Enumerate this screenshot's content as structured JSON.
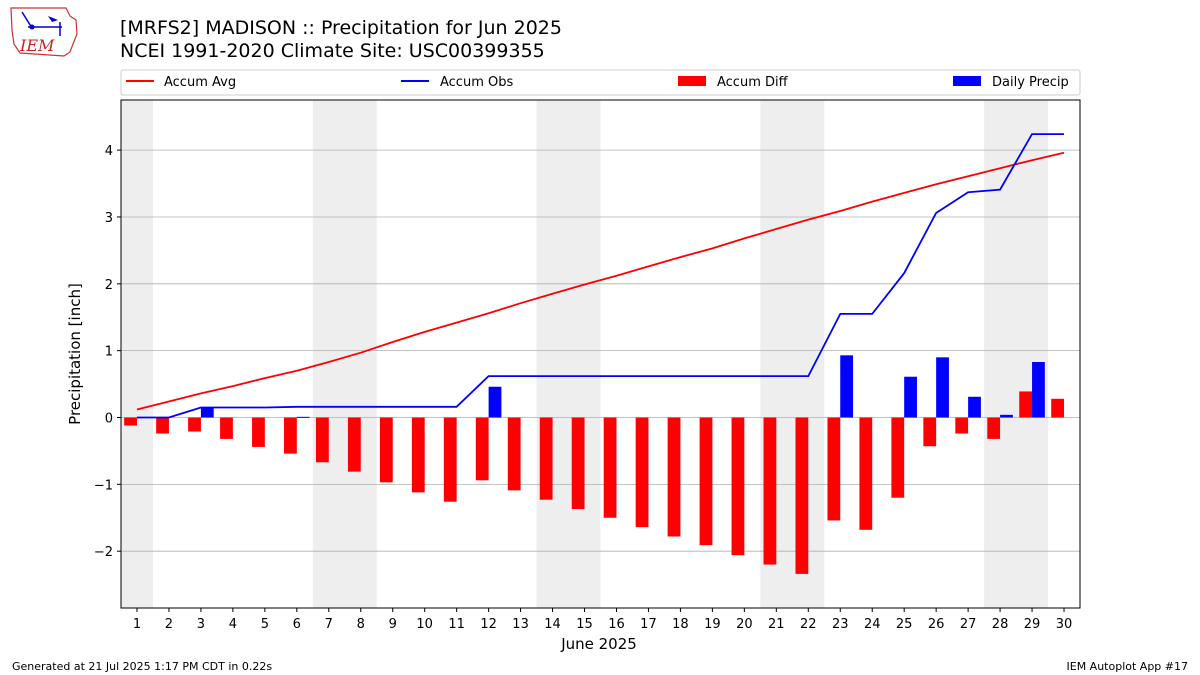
{
  "header": {
    "title_line1": "[MRFS2] MADISON :: Precipitation for Jun 2025",
    "title_line2": "NCEI 1991-2020 Climate Site: USC00399355",
    "logo_text": "IEM"
  },
  "footer": {
    "generated": "Generated at 21 Jul 2025 1:17 PM CDT in 0.22s",
    "app": "IEM Autoplot App #17"
  },
  "chart_data": {
    "type": "bar",
    "xlabel": "June 2025",
    "ylabel": "Precipitation [inch]",
    "xlim": [
      0.5,
      30.5
    ],
    "ylim": [
      -2.85,
      4.75
    ],
    "yticks": [
      -2,
      -1,
      0,
      1,
      2,
      3,
      4
    ],
    "ytick_labels": [
      "−2",
      "−1",
      "0",
      "1",
      "2",
      "3",
      "4"
    ],
    "grid": "y",
    "legend_placement": "top",
    "weekend_shading": [
      [
        0.5,
        1.5
      ],
      [
        6.5,
        8.5
      ],
      [
        13.5,
        15.5
      ],
      [
        20.5,
        22.5
      ],
      [
        27.5,
        29.5
      ]
    ],
    "colors": {
      "avg": "#ff0000",
      "obs": "#0000ff",
      "diff": "#ff0000",
      "daily": "#0000ff",
      "weekend": "#eeeeee",
      "grid": "#b0b0b0"
    },
    "days": [
      1,
      2,
      3,
      4,
      5,
      6,
      7,
      8,
      9,
      10,
      11,
      12,
      13,
      14,
      15,
      16,
      17,
      18,
      19,
      20,
      21,
      22,
      23,
      24,
      25,
      26,
      27,
      28,
      29,
      30
    ],
    "series": [
      {
        "name": "Accum Avg",
        "kind": "line",
        "values": [
          0.12,
          0.24,
          0.36,
          0.47,
          0.59,
          0.7,
          0.83,
          0.97,
          1.13,
          1.28,
          1.42,
          1.56,
          1.71,
          1.85,
          1.99,
          2.12,
          2.26,
          2.4,
          2.53,
          2.68,
          2.82,
          2.96,
          3.09,
          3.23,
          3.36,
          3.49,
          3.61,
          3.73,
          3.85,
          3.96
        ]
      },
      {
        "name": "Accum Obs",
        "kind": "line",
        "values": [
          0.0,
          0.0,
          0.15,
          0.15,
          0.15,
          0.16,
          0.16,
          0.16,
          0.16,
          0.16,
          0.16,
          0.62,
          0.62,
          0.62,
          0.62,
          0.62,
          0.62,
          0.62,
          0.62,
          0.62,
          0.62,
          0.62,
          1.55,
          1.55,
          2.16,
          3.06,
          3.37,
          3.41,
          4.24,
          4.24
        ]
      },
      {
        "name": "Accum Diff",
        "kind": "bar",
        "values": [
          -0.12,
          -0.24,
          -0.21,
          -0.32,
          -0.44,
          -0.54,
          -0.67,
          -0.81,
          -0.97,
          -1.12,
          -1.26,
          -0.94,
          -1.09,
          -1.23,
          -1.37,
          -1.5,
          -1.64,
          -1.78,
          -1.91,
          -2.06,
          -2.2,
          -2.34,
          -1.54,
          -1.68,
          -1.2,
          -0.43,
          -0.24,
          -0.32,
          0.39,
          0.28
        ]
      },
      {
        "name": "Daily Precip",
        "kind": "bar",
        "values": [
          0,
          0,
          0.15,
          0,
          0,
          0.01,
          0,
          0,
          0,
          0,
          0,
          0.46,
          0,
          0,
          0,
          0,
          0,
          0,
          0,
          0,
          0,
          0,
          0.93,
          0,
          0.61,
          0.9,
          0.31,
          0.04,
          0.83,
          0
        ]
      }
    ]
  }
}
